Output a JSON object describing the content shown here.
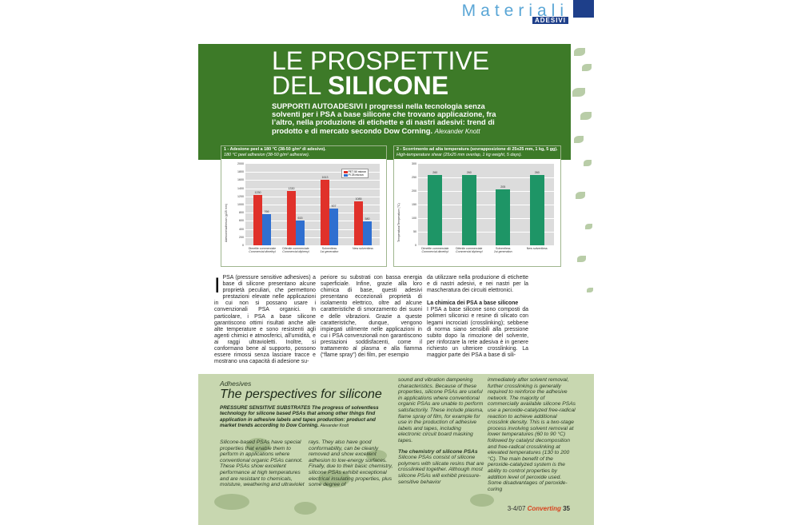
{
  "header": {
    "section": "Materiali",
    "subsection": "ADESIVI"
  },
  "title": {
    "line1": "LE PROSPETTIVE",
    "line2_normal": "DEL ",
    "line2_bold": "SILICONE"
  },
  "deck": {
    "text": "SUPPORTI AUTOADESIVI  I progressi nella tecnologia senza solventi per i PSA a base silicone che trovano applicazione, fra l’altro, nella produzione di etichette e di nastri adesivi: trend di prodotto e di mercato secondo Dow Corning.",
    "author": "Alexander Knott"
  },
  "chart_data": [
    {
      "type": "bar",
      "caption_it": "1 - Adesione peel a 180 °C (38-50 g/m² di adesivo).",
      "caption_en": "180 °C peel adhesion (38-50 g/m² adhesive).",
      "ylabel": "Adesione/adhesion (g/25 mm)",
      "ylim": [
        0,
        2000
      ],
      "yticks": [
        "2000",
        "1800",
        "1600",
        "1400",
        "1200",
        "1000",
        "800",
        "600",
        "400",
        "200",
        "0"
      ],
      "categories": [
        [
          "Dimetile commerciale",
          "Commercial dimethyl"
        ],
        [
          "Difenile commerciale",
          "Commercial diphenyl"
        ],
        [
          "Solventless",
          "1st generation"
        ],
        [
          "New solventless",
          ""
        ]
      ],
      "series": [
        {
          "name": "PET 50 micron",
          "color": "#e0312a",
          "values": [
            1230,
            1330,
            1613,
            1085
          ]
        },
        {
          "name": "PI 25 micron",
          "color": "#2f6fd0",
          "values": [
            766,
            615,
            907,
            580
          ]
        }
      ],
      "value_labels": [
        [
          "1230",
          "766"
        ],
        [
          "1330",
          "615"
        ],
        [
          "1613",
          "907"
        ],
        [
          "1085",
          "580"
        ]
      ]
    },
    {
      "type": "bar",
      "caption_it": "2 - Scorrimento ad alta temperatura (sovrapposizione di 25x25 mm, 1 kg, 5 gg).",
      "caption_en": "High-temperature shear (25x25 mm overlap, 1 kg weight, 5 days).",
      "ylabel": "Temperatura/Temperature (°C)",
      "ylim": [
        0,
        300
      ],
      "yticks": [
        "300",
        "250",
        "200",
        "150",
        "100",
        "50",
        "0"
      ],
      "categories": [
        [
          "Dimetile commerciale",
          "Commercial dimethyl"
        ],
        [
          "Difenile commerciale",
          "Commercial diphenyl"
        ],
        [
          "Solventless",
          "1st generation"
        ],
        [
          "New solventless",
          ""
        ]
      ],
      "series": [
        {
          "name": "",
          "color": "#1e9566",
          "values": [
            260,
            260,
            205,
            260
          ]
        }
      ],
      "value_labels": [
        "260",
        "260",
        "205",
        "260"
      ]
    }
  ],
  "body_it": {
    "col1_dropcap": "I",
    "col1": "PSA (pressure sensitive adhesives) a base di silicone presentano alcune proprietà peculiari, che permettono prestazioni elevate nelle applicazioni in cui non si possano usare i convenzionali PSA organici. In particolare, i PSA a base silicone garantiscono ottimi risultati anche alle alte temperature e sono resistenti agli agenti chimici e atmosferici, all’umidità, e ai raggi ultravioletti. Inoltre, si conformano bene al supporto, possono essere rimossi senza lasciare tracce e mostrano una capacità di adesione su-",
    "col2": "periore su substrati con bassa energia superficiale. Infine, grazie alla loro chimica di base, questi adesivi presentano eccezionali proprietà di isolamento elettrico, oltre ad alcune caratteristiche di smorzamento dei suoni e delle vibrazioni. Grazie a queste caratteristiche, dunque, vengono impiegati utilmente nelle applicazioni in cui i PSA convenzionali non garantiscono prestazioni soddisfacenti, come il trattamento al plasma e alla fiamma (“flame spray”) dei film, per esempio",
    "col3": "da utilizzare nella produzione di etichette e di nastri adesivi, e nei nastri per la mascheratura dei circuiti elettronici.",
    "col3_subhead": "La chimica dei PSA a base silicone",
    "col3_b": "I PSA a base silicone sono composti da polimeri siliconici e resine di silicato con legami incrociati (crosslinking); sebbene di norma siano sensibili alla pressione subito dopo la rimozione del solvente, per rinforzare la rete adesiva è in genere richiesto un ulteriore crosslinking. La maggior parte dei PSA a base di sili-"
  },
  "english": {
    "label": "Adhesives",
    "title": "The perspectives for silicone",
    "head": "PRESSURE SENSITIVE SUBSTRATES The progress of solventless technology for silicone based PSAs that among other things find application in adhesive labels and tapes production: product and market trends according to Dow Corning.",
    "author": "Alexander Knott",
    "col1": "Silicone-based PSAs have special properties that enable them to perform in applications where conventional organic PSAs cannot. These PSAs show excellent performance at high temperatures and are resistant to chemicals, moisture, weathering and ultraviolet",
    "col2": "rays. They also have good conformability, can be cleanly removed and show excellent adhesion to low-energy surfaces. Finally, due to their basic chemistry, silicone PSAs exhibit exceptional electrical insulating properties, plus some degree of",
    "col3": "sound and vibration dampening characteristics. Because of these properties, silicone PSAs are useful in applications where conventional organic PSAs are unable to perform satisfactorily. These include plasma, flame spray of film, for example for use in the production of adhesive labels and tapes, including electronic circuit board masking tapes.",
    "col3_subhead": "The chemistry of silicone PSAs",
    "col3_b": "Silicone PSAs consist of silicone polymers with silicate resins that are crosslinked together. Although most silicone PSAs will exhibit pressure-sensitive behavior",
    "col4": "immediately after solvent removal, further crosslinking is generally required to reinforce the adhesive network. The majority of commercially available silicone PSAs use a peroxide-catalyzed free-radical reaction to achieve additional crosslink density. This is a two-stage process involving solvent removal at lower temperatures (60 to 90 °C) followed by catalyst decomposition and free-radical crosslinking at elevated temperatures (130 to 200 °C). The main benefit of the peroxide-catalyzed system is the ability to control properties by addition level of peroxide used. Some disadvantages of peroxide-curing"
  },
  "footer": {
    "issue": "3-4/07",
    "magazine": "Converting",
    "page": "35"
  }
}
